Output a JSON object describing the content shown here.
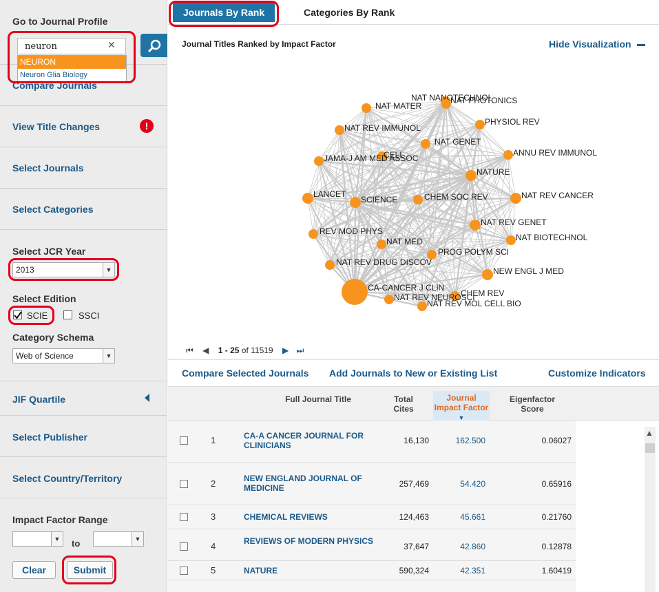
{
  "sidebar": {
    "go_to_profile": "Go to Journal Profile",
    "search_value": "neuron",
    "suggestions": [
      "NEURON",
      "Neuron Glia Biology"
    ],
    "compare_journals": "Compare Journals",
    "view_title_changes": "View Title Changes",
    "select_journals": "Select Journals",
    "select_categories": "Select Categories",
    "jcr_year_label": "Select JCR Year",
    "jcr_year_value": "2013",
    "edition_label": "Select Edition",
    "edition_scie": "SCIE",
    "edition_ssci": "SSCI",
    "edition_scie_checked": true,
    "category_schema_label": "Category Schema",
    "category_schema_value": "Web of Science",
    "jif_quartile": "JIF Quartile",
    "select_publisher": "Select Publisher",
    "select_country": "Select Country/Territory",
    "impact_range_label": "Impact Factor Range",
    "to_label": "to",
    "clear_label": "Clear",
    "submit_label": "Submit"
  },
  "tabs": {
    "active": "Journals By Rank",
    "inactive": "Categories By Rank"
  },
  "viz": {
    "title": "Journal Titles Ranked by Impact Factor",
    "hide_label": "Hide Visualization",
    "nodes": [
      {
        "label": "NAT NANOTECHNOL"
      },
      {
        "label": "NAT PHOTONICS"
      },
      {
        "label": "NAT MATER"
      },
      {
        "label": "PHYSIOL REV"
      },
      {
        "label": "NAT REV IMMUNOL"
      },
      {
        "label": "NAT GENET"
      },
      {
        "label": "ANNU REV IMMUNOL"
      },
      {
        "label": "CELL"
      },
      {
        "label": "JAMA-J AM MED ASSOC"
      },
      {
        "label": "NATURE"
      },
      {
        "label": "LANCET"
      },
      {
        "label": "SCIENCE"
      },
      {
        "label": "CHEM SOC REV"
      },
      {
        "label": "NAT REV CANCER"
      },
      {
        "label": "NAT REV GENET"
      },
      {
        "label": "REV MOD PHYS"
      },
      {
        "label": "NAT BIOTECHNOL"
      },
      {
        "label": "NAT MED"
      },
      {
        "label": "PROG POLYM SCI"
      },
      {
        "label": "NAT REV DRUG DISCOV"
      },
      {
        "label": "NEW ENGL J MED"
      },
      {
        "label": "CA-CANCER J CLIN"
      },
      {
        "label": "CHEM REV"
      },
      {
        "label": "NAT REV NEUROSCI"
      },
      {
        "label": "NAT REV MOL CELL BIO"
      }
    ]
  },
  "pager": {
    "range": "1 - 25",
    "of": "of 11519"
  },
  "actions": {
    "compare": "Compare Selected Journals",
    "add_list": "Add Journals to New or Existing List",
    "customize": "Customize Indicators"
  },
  "table": {
    "headers": {
      "title": "Full Journal Title",
      "cites": "Total Cites",
      "jif": "Journal Impact Factor",
      "eigen": "Eigenfactor Score"
    },
    "rows": [
      {
        "rank": "1",
        "title": "CA-A CANCER JOURNAL FOR CLINICIANS",
        "cites": "16,130",
        "jif": "162.500",
        "eigen": "0.06027"
      },
      {
        "rank": "2",
        "title": "NEW ENGLAND JOURNAL OF MEDICINE",
        "cites": "257,469",
        "jif": "54.420",
        "eigen": "0.65916"
      },
      {
        "rank": "3",
        "title": "CHEMICAL REVIEWS",
        "cites": "124,463",
        "jif": "45.661",
        "eigen": "0.21760"
      },
      {
        "rank": "4",
        "title": "REVIEWS OF MODERN PHYSICS",
        "cites": "37,647",
        "jif": "42.860",
        "eigen": "0.12878"
      },
      {
        "rank": "5",
        "title": "NATURE",
        "cites": "590,324",
        "jif": "42.351",
        "eigen": "1.60419"
      }
    ]
  },
  "colors": {
    "accent": "#1f74a5",
    "node": "#f7941e",
    "highlight": "#e2001a"
  }
}
